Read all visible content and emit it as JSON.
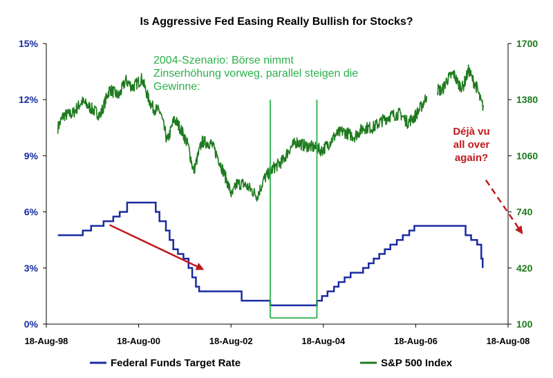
{
  "chart_data": {
    "type": "line",
    "title": "Is Aggressive Fed Easing Really Bullish for Stocks?",
    "x_axis": {
      "ticks": [
        "18-Aug-98",
        "18-Aug-00",
        "18-Aug-02",
        "18-Aug-04",
        "18-Aug-06",
        "18-Aug-08"
      ],
      "range": [
        1998.63,
        2008.63
      ]
    },
    "y_left": {
      "ticks": [
        "0%",
        "3%",
        "6%",
        "9%",
        "12%",
        "15%"
      ],
      "range": [
        0,
        15
      ],
      "color": "#1a2aa0"
    },
    "y_right": {
      "ticks": [
        "100",
        "420",
        "740",
        "1060",
        "1380",
        "1700"
      ],
      "range": [
        100,
        1700
      ],
      "color": "#1a7a1a"
    },
    "series": [
      {
        "name": "Federal Funds Target Rate",
        "axis": "left",
        "color": "#1a2aa0",
        "step": true,
        "points": [
          [
            1998.88,
            4.75
          ],
          [
            1999.42,
            5.0
          ],
          [
            1999.6,
            5.25
          ],
          [
            1999.87,
            5.5
          ],
          [
            2000.08,
            5.75
          ],
          [
            2000.22,
            6.0
          ],
          [
            2000.38,
            6.5
          ],
          [
            2001.0,
            6.0
          ],
          [
            2001.08,
            5.5
          ],
          [
            2001.22,
            5.0
          ],
          [
            2001.3,
            4.5
          ],
          [
            2001.38,
            4.0
          ],
          [
            2001.48,
            3.75
          ],
          [
            2001.6,
            3.5
          ],
          [
            2001.71,
            3.0
          ],
          [
            2001.79,
            2.5
          ],
          [
            2001.87,
            2.0
          ],
          [
            2001.94,
            1.75
          ],
          [
            2002.86,
            1.25
          ],
          [
            2003.48,
            1.0
          ],
          [
            2004.49,
            1.25
          ],
          [
            2004.6,
            1.5
          ],
          [
            2004.72,
            1.75
          ],
          [
            2004.86,
            2.0
          ],
          [
            2004.96,
            2.25
          ],
          [
            2005.09,
            2.5
          ],
          [
            2005.22,
            2.75
          ],
          [
            2005.49,
            3.0
          ],
          [
            2005.61,
            3.25
          ],
          [
            2005.72,
            3.5
          ],
          [
            2005.84,
            3.75
          ],
          [
            2005.96,
            4.0
          ],
          [
            2006.08,
            4.25
          ],
          [
            2006.22,
            4.5
          ],
          [
            2006.35,
            4.75
          ],
          [
            2006.49,
            5.0
          ],
          [
            2006.6,
            5.25
          ],
          [
            2007.71,
            4.75
          ],
          [
            2007.83,
            4.5
          ],
          [
            2007.96,
            4.25
          ],
          [
            2008.05,
            3.5
          ],
          [
            2008.08,
            3.0
          ]
        ]
      },
      {
        "name": "S&P 500 Index",
        "axis": "right",
        "color": "#1e7a1e",
        "segments": [
          [
            [
              1998.88,
              1220
            ],
            [
              1999.0,
              1290
            ],
            [
              1999.2,
              1300
            ],
            [
              1999.4,
              1370
            ],
            [
              1999.6,
              1330
            ],
            [
              1999.8,
              1290
            ],
            [
              2000.0,
              1440
            ],
            [
              2000.2,
              1400
            ],
            [
              2000.35,
              1490
            ],
            [
              2000.5,
              1450
            ],
            [
              2000.7,
              1500
            ],
            [
              2000.85,
              1380
            ],
            [
              2000.95,
              1330
            ],
            [
              2001.1,
              1310
            ],
            [
              2001.25,
              1140
            ],
            [
              2001.4,
              1270
            ],
            [
              2001.55,
              1210
            ],
            [
              2001.7,
              1120
            ],
            [
              2001.82,
              970
            ],
            [
              2002.0,
              1140
            ],
            [
              2002.2,
              1130
            ],
            [
              2002.35,
              1050
            ],
            [
              2002.55,
              910
            ],
            [
              2002.65,
              830
            ],
            [
              2002.75,
              900
            ],
            [
              2002.9,
              900
            ],
            [
              2003.05,
              870
            ],
            [
              2003.2,
              830
            ],
            [
              2003.35,
              930
            ],
            [
              2003.55,
              990
            ],
            [
              2003.75,
              1030
            ],
            [
              2003.9,
              1100
            ],
            [
              2004.05,
              1140
            ],
            [
              2004.2,
              1120
            ],
            [
              2004.4,
              1110
            ],
            [
              2004.6,
              1090
            ],
            [
              2004.75,
              1130
            ],
            [
              2004.9,
              1180
            ],
            [
              2005.05,
              1200
            ],
            [
              2005.3,
              1170
            ],
            [
              2005.5,
              1220
            ],
            [
              2005.7,
              1220
            ],
            [
              2005.9,
              1260
            ],
            [
              2006.1,
              1290
            ],
            [
              2006.3,
              1300
            ],
            [
              2006.45,
              1250
            ],
            [
              2006.6,
              1280
            ],
            [
              2006.75,
              1340
            ],
            [
              2006.87,
              1400
            ]
          ],
          [
            [
              2007.1,
              1440
            ],
            [
              2007.2,
              1430
            ],
            [
              2007.3,
              1490
            ],
            [
              2007.45,
              1530
            ],
            [
              2007.55,
              1470
            ],
            [
              2007.65,
              1450
            ],
            [
              2007.78,
              1550
            ],
            [
              2007.85,
              1500
            ],
            [
              2007.95,
              1450
            ],
            [
              2008.05,
              1360
            ],
            [
              2008.1,
              1340
            ]
          ]
        ]
      }
    ],
    "annotations": {
      "scenario_text": [
        "2004-Szenario: Börse nimmt",
        "Zinserhöhung vorweg, parallel steigen die",
        "Gewinne:"
      ],
      "scenario_color": "#2ab04a",
      "scenario_box": {
        "x_from": 2003.48,
        "x_to": 2004.49,
        "top": 1380,
        "bottom": 135
      },
      "dejavu_text": [
        "Déjà vu",
        "all over",
        "again?"
      ],
      "dejavu_color": "#c0191c",
      "red_arrow": {
        "from": [
          2000.0,
          5.3
        ],
        "to": [
          2002.05,
          2.9
        ]
      },
      "red_dashed_arrow": {
        "from": [
          2008.15,
          7.7
        ],
        "to": [
          2008.95,
          4.8
        ]
      }
    },
    "legend": {
      "placement": "bottom",
      "items": [
        {
          "label": "Federal Funds Target Rate",
          "color": "#1a2aa0"
        },
        {
          "label": "S&P 500 Index",
          "color": "#1e7a1e"
        }
      ]
    }
  }
}
